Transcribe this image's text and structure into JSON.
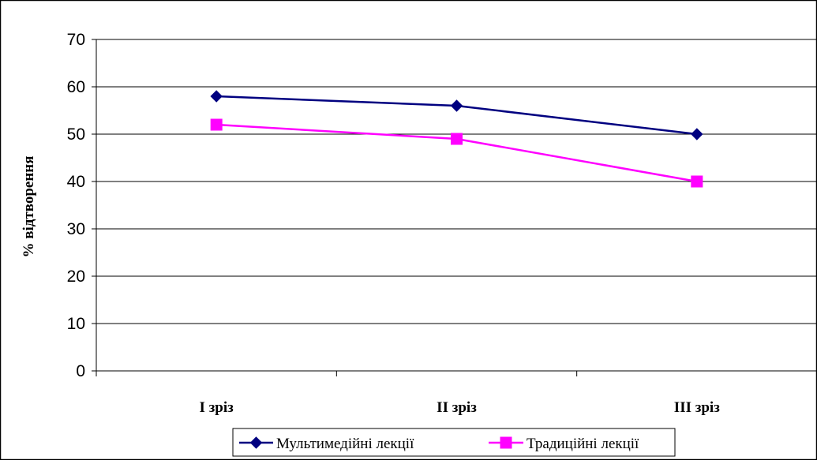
{
  "chart_data": {
    "type": "line",
    "title": "",
    "xlabel": "",
    "ylabel": "% відтворення",
    "categories": [
      "I зріз",
      "II зріз",
      "III зріз"
    ],
    "ylim": [
      0,
      70
    ],
    "yticks": [
      0,
      10,
      20,
      30,
      40,
      50,
      60,
      70
    ],
    "grid": true,
    "legend_position": "bottom",
    "series": [
      {
        "name": "Мультимедійні лекції",
        "values": [
          58,
          56,
          50
        ],
        "color": "#000080",
        "marker": "diamond"
      },
      {
        "name": "Традиційні лекції",
        "values": [
          52,
          49,
          40
        ],
        "color": "#FF00FF",
        "marker": "square"
      }
    ]
  }
}
